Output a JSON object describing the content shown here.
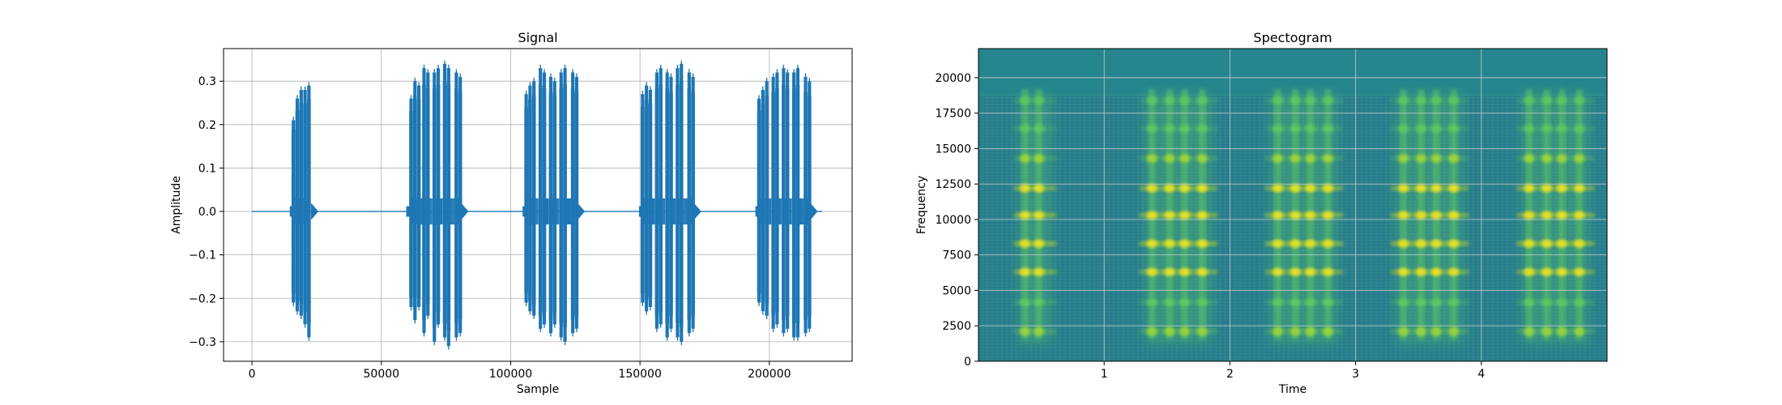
{
  "chart_data": [
    {
      "type": "line",
      "title": "Signal",
      "xlabel": "Sample",
      "ylabel": "Amplitude",
      "xlim": [
        -11000,
        232000
      ],
      "ylim": [
        -0.345,
        0.375
      ],
      "grid": true,
      "color": "#1f77b4",
      "xticks": [
        0,
        50000,
        100000,
        150000,
        200000
      ],
      "xtick_labels": [
        "0",
        "50000",
        "100000",
        "150000",
        "200000"
      ],
      "yticks": [
        -0.3,
        -0.2,
        -0.1,
        0.0,
        0.1,
        0.2,
        0.3
      ],
      "ytick_labels": [
        "−0.3",
        "−0.2",
        "−0.1",
        "0.0",
        "0.1",
        "0.2",
        "0.3"
      ],
      "x_range": [
        0,
        220500
      ],
      "bursts": [
        {
          "start": 16000,
          "end": 23000,
          "pulses": [
            {
              "x": 16000,
              "pos": 0.21,
              "neg": -0.21
            },
            {
              "x": 17500,
              "pos": 0.26,
              "neg": -0.23
            },
            {
              "x": 19000,
              "pos": 0.28,
              "neg": -0.24
            },
            {
              "x": 20500,
              "pos": 0.28,
              "neg": -0.26
            },
            {
              "x": 22000,
              "pos": 0.29,
              "neg": -0.29
            }
          ]
        },
        {
          "start": 61000,
          "end": 81000,
          "pulses": [
            {
              "x": 61500,
              "pos": 0.26,
              "neg": -0.22
            },
            {
              "x": 63000,
              "pos": 0.3,
              "neg": -0.25
            },
            {
              "x": 64500,
              "pos": 0.29,
              "neg": -0.22
            },
            {
              "x": 66500,
              "pos": 0.33,
              "neg": -0.28
            },
            {
              "x": 68000,
              "pos": 0.32,
              "neg": -0.24
            },
            {
              "x": 70500,
              "pos": 0.32,
              "neg": -0.3
            },
            {
              "x": 72000,
              "pos": 0.33,
              "neg": -0.26
            },
            {
              "x": 74500,
              "pos": 0.34,
              "neg": -0.29
            },
            {
              "x": 76000,
              "pos": 0.33,
              "neg": -0.31
            },
            {
              "x": 79000,
              "pos": 0.32,
              "neg": -0.29
            },
            {
              "x": 80500,
              "pos": 0.31,
              "neg": -0.28
            }
          ]
        },
        {
          "start": 106000,
          "end": 126000,
          "pulses": [
            {
              "x": 106000,
              "pos": 0.27,
              "neg": -0.21
            },
            {
              "x": 107500,
              "pos": 0.29,
              "neg": -0.23
            },
            {
              "x": 109000,
              "pos": 0.3,
              "neg": -0.24
            },
            {
              "x": 111500,
              "pos": 0.33,
              "neg": -0.27
            },
            {
              "x": 113000,
              "pos": 0.32,
              "neg": -0.26
            },
            {
              "x": 115500,
              "pos": 0.31,
              "neg": -0.28
            },
            {
              "x": 117000,
              "pos": 0.3,
              "neg": -0.26
            },
            {
              "x": 119500,
              "pos": 0.32,
              "neg": -0.29
            },
            {
              "x": 121000,
              "pos": 0.33,
              "neg": -0.3
            },
            {
              "x": 124000,
              "pos": 0.32,
              "neg": -0.28
            },
            {
              "x": 125500,
              "pos": 0.31,
              "neg": -0.27
            }
          ]
        },
        {
          "start": 151000,
          "end": 171000,
          "pulses": [
            {
              "x": 151000,
              "pos": 0.27,
              "neg": -0.21
            },
            {
              "x": 152500,
              "pos": 0.29,
              "neg": -0.23
            },
            {
              "x": 154000,
              "pos": 0.28,
              "neg": -0.22
            },
            {
              "x": 156500,
              "pos": 0.32,
              "neg": -0.27
            },
            {
              "x": 158000,
              "pos": 0.33,
              "neg": -0.26
            },
            {
              "x": 160500,
              "pos": 0.32,
              "neg": -0.29
            },
            {
              "x": 162000,
              "pos": 0.31,
              "neg": -0.27
            },
            {
              "x": 164500,
              "pos": 0.33,
              "neg": -0.29
            },
            {
              "x": 166000,
              "pos": 0.34,
              "neg": -0.3
            },
            {
              "x": 169000,
              "pos": 0.32,
              "neg": -0.28
            },
            {
              "x": 170500,
              "pos": 0.31,
              "neg": -0.27
            }
          ]
        },
        {
          "start": 196000,
          "end": 216000,
          "pulses": [
            {
              "x": 196000,
              "pos": 0.26,
              "neg": -0.21
            },
            {
              "x": 197500,
              "pos": 0.28,
              "neg": -0.23
            },
            {
              "x": 199000,
              "pos": 0.3,
              "neg": -0.24
            },
            {
              "x": 201500,
              "pos": 0.31,
              "neg": -0.27
            },
            {
              "x": 203000,
              "pos": 0.32,
              "neg": -0.26
            },
            {
              "x": 205500,
              "pos": 0.33,
              "neg": -0.28
            },
            {
              "x": 207000,
              "pos": 0.32,
              "neg": -0.27
            },
            {
              "x": 209500,
              "pos": 0.32,
              "neg": -0.29
            },
            {
              "x": 211000,
              "pos": 0.33,
              "neg": -0.29
            },
            {
              "x": 214000,
              "pos": 0.31,
              "neg": -0.28
            },
            {
              "x": 215500,
              "pos": 0.3,
              "neg": -0.27
            }
          ]
        }
      ]
    },
    {
      "type": "heatmap",
      "title": "Spectogram",
      "xlabel": "Time",
      "ylabel": "Frequency",
      "xlim": [
        0,
        5.0
      ],
      "ylim": [
        0,
        22050
      ],
      "grid": true,
      "colormap": [
        "#440154",
        "#3b528b",
        "#21918c",
        "#5ec962",
        "#fde725"
      ],
      "background_color": "#2a788e",
      "noise_color": "#2c8a8c",
      "upper_band_color": "#25868e",
      "xticks": [
        1,
        2,
        3,
        4
      ],
      "xtick_labels": [
        "1",
        "2",
        "3",
        "4"
      ],
      "yticks": [
        0,
        2500,
        5000,
        7500,
        10000,
        12500,
        15000,
        17500,
        20000
      ],
      "ytick_labels": [
        "0",
        "2500",
        "5000",
        "7500",
        "10000",
        "12500",
        "15000",
        "17500",
        "20000"
      ],
      "upper_band_start": 18800,
      "tone_columns": [
        [
          0.37,
          0.48
        ],
        [
          1.38,
          1.52,
          1.64,
          1.78
        ],
        [
          2.38,
          2.52,
          2.64,
          2.78
        ],
        [
          3.38,
          3.52,
          3.64,
          3.78
        ],
        [
          4.38,
          4.52,
          4.64,
          4.78
        ]
      ],
      "burst_ranges": [
        [
          0.32,
          0.58
        ],
        [
          1.32,
          1.86
        ],
        [
          2.32,
          2.86
        ],
        [
          3.32,
          3.86
        ],
        [
          4.32,
          4.86
        ]
      ],
      "harmonics": [
        {
          "freq": 2100,
          "level": 0.75
        },
        {
          "freq": 4150,
          "level": 0.55
        },
        {
          "freq": 6300,
          "level": 0.85
        },
        {
          "freq": 8300,
          "level": 1.0
        },
        {
          "freq": 10300,
          "level": 0.95
        },
        {
          "freq": 12200,
          "level": 0.85
        },
        {
          "freq": 14300,
          "level": 0.6
        },
        {
          "freq": 16400,
          "level": 0.5
        },
        {
          "freq": 18400,
          "level": 0.45
        }
      ]
    }
  ]
}
